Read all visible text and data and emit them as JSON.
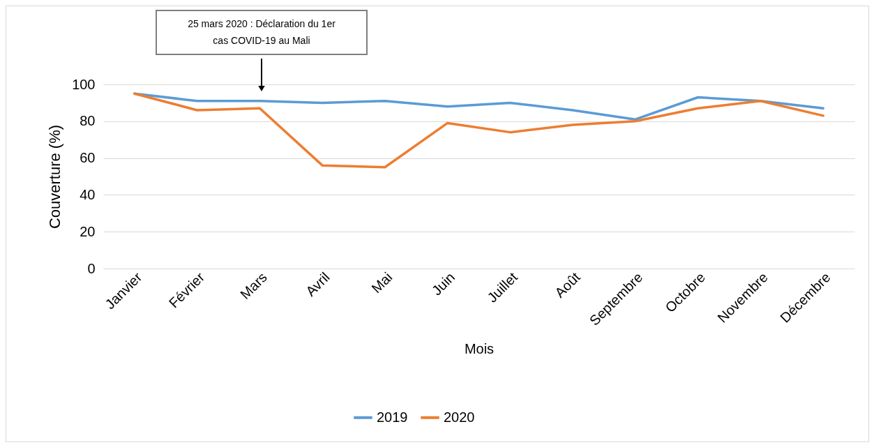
{
  "chart_data": {
    "type": "line",
    "xlabel": "Mois",
    "ylabel": "Couverture (%)",
    "categories": [
      "Janvier",
      "Février",
      "Mars",
      "Avril",
      "Mai",
      "Juin",
      "Juillet",
      "Août",
      "Septembre",
      "Octobre",
      "Novembre",
      "Décembre"
    ],
    "series": [
      {
        "name": "2019",
        "color": "#5b9bd5",
        "values": [
          95,
          91,
          91,
          90,
          91,
          88,
          90,
          86,
          81,
          93,
          91,
          87
        ]
      },
      {
        "name": "2020",
        "color": "#ed7d31",
        "values": [
          95,
          86,
          87,
          56,
          55,
          79,
          74,
          78,
          80,
          87,
          91,
          83
        ]
      }
    ],
    "ylim": [
      0,
      100
    ],
    "yticks": [
      0,
      20,
      40,
      60,
      80,
      100
    ],
    "grid": "y",
    "legend": "bottom",
    "marker": "none",
    "line_style": "solid",
    "annotations": [
      "25 mars 2020 : Déclaration du 1er cas COVID-19 au Mali"
    ]
  }
}
